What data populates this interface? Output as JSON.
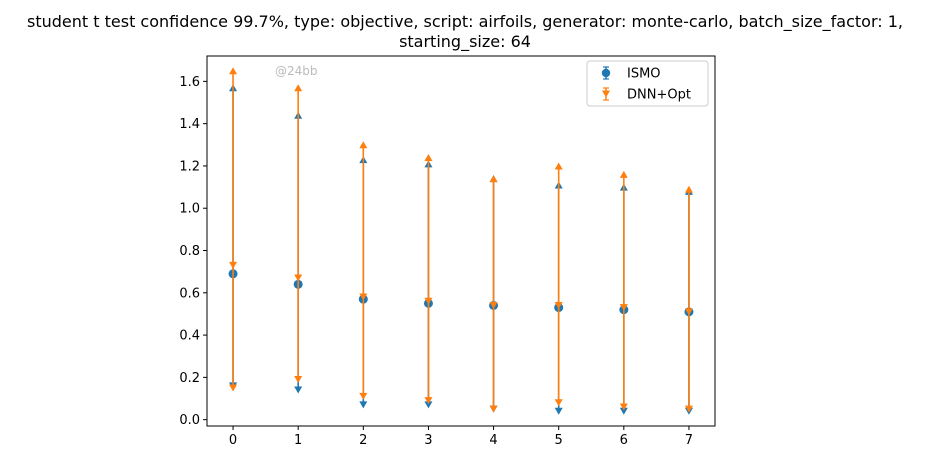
{
  "chart_data": {
    "type": "scatter",
    "title_line1": "student t test confidence 99.7%, type: objective, script: airfoils, generator: monte-carlo, batch_size_factor: 1,",
    "title_line2": "starting_size: 64",
    "xlabel": "",
    "ylabel": "",
    "xlim": [
      -0.4,
      7.4
    ],
    "ylim": [
      -0.03,
      1.72
    ],
    "xticks": [
      0,
      1,
      2,
      3,
      4,
      5,
      6,
      7
    ],
    "yticks": [
      0.0,
      0.2,
      0.4,
      0.6,
      0.8,
      1.0,
      1.2,
      1.4,
      1.6
    ],
    "ytick_labels": [
      "0.0",
      "0.2",
      "0.4",
      "0.6",
      "0.8",
      "1.0",
      "1.2",
      "1.4",
      "1.6"
    ],
    "xtick_labels": [
      "0",
      "1",
      "2",
      "3",
      "4",
      "5",
      "6",
      "7"
    ],
    "grid": false,
    "legend_position": "top-right",
    "watermark": "@24bb",
    "series": [
      {
        "name": "ISMO",
        "color": "#1f77b4",
        "marker": "circle",
        "x": [
          0,
          1,
          2,
          3,
          4,
          5,
          6,
          7
        ],
        "y": [
          0.69,
          0.64,
          0.57,
          0.55,
          0.54,
          0.53,
          0.52,
          0.51
        ],
        "lower": [
          0.16,
          0.14,
          0.07,
          0.07,
          0.05,
          0.04,
          0.04,
          0.04
        ],
        "upper": [
          1.57,
          1.44,
          1.23,
          1.21,
          1.14,
          1.11,
          1.1,
          1.08
        ]
      },
      {
        "name": "DNN+Opt",
        "color": "#ff7f0e",
        "marker": "triangle-down",
        "x": [
          0,
          1,
          2,
          3,
          4,
          5,
          6,
          7
        ],
        "y": [
          0.73,
          0.67,
          0.58,
          0.56,
          0.54,
          0.54,
          0.53,
          0.51
        ],
        "lower": [
          0.15,
          0.19,
          0.11,
          0.09,
          0.05,
          0.08,
          0.06,
          0.05
        ],
        "upper": [
          1.65,
          1.57,
          1.3,
          1.24,
          1.14,
          1.2,
          1.16,
          1.09
        ]
      }
    ]
  }
}
